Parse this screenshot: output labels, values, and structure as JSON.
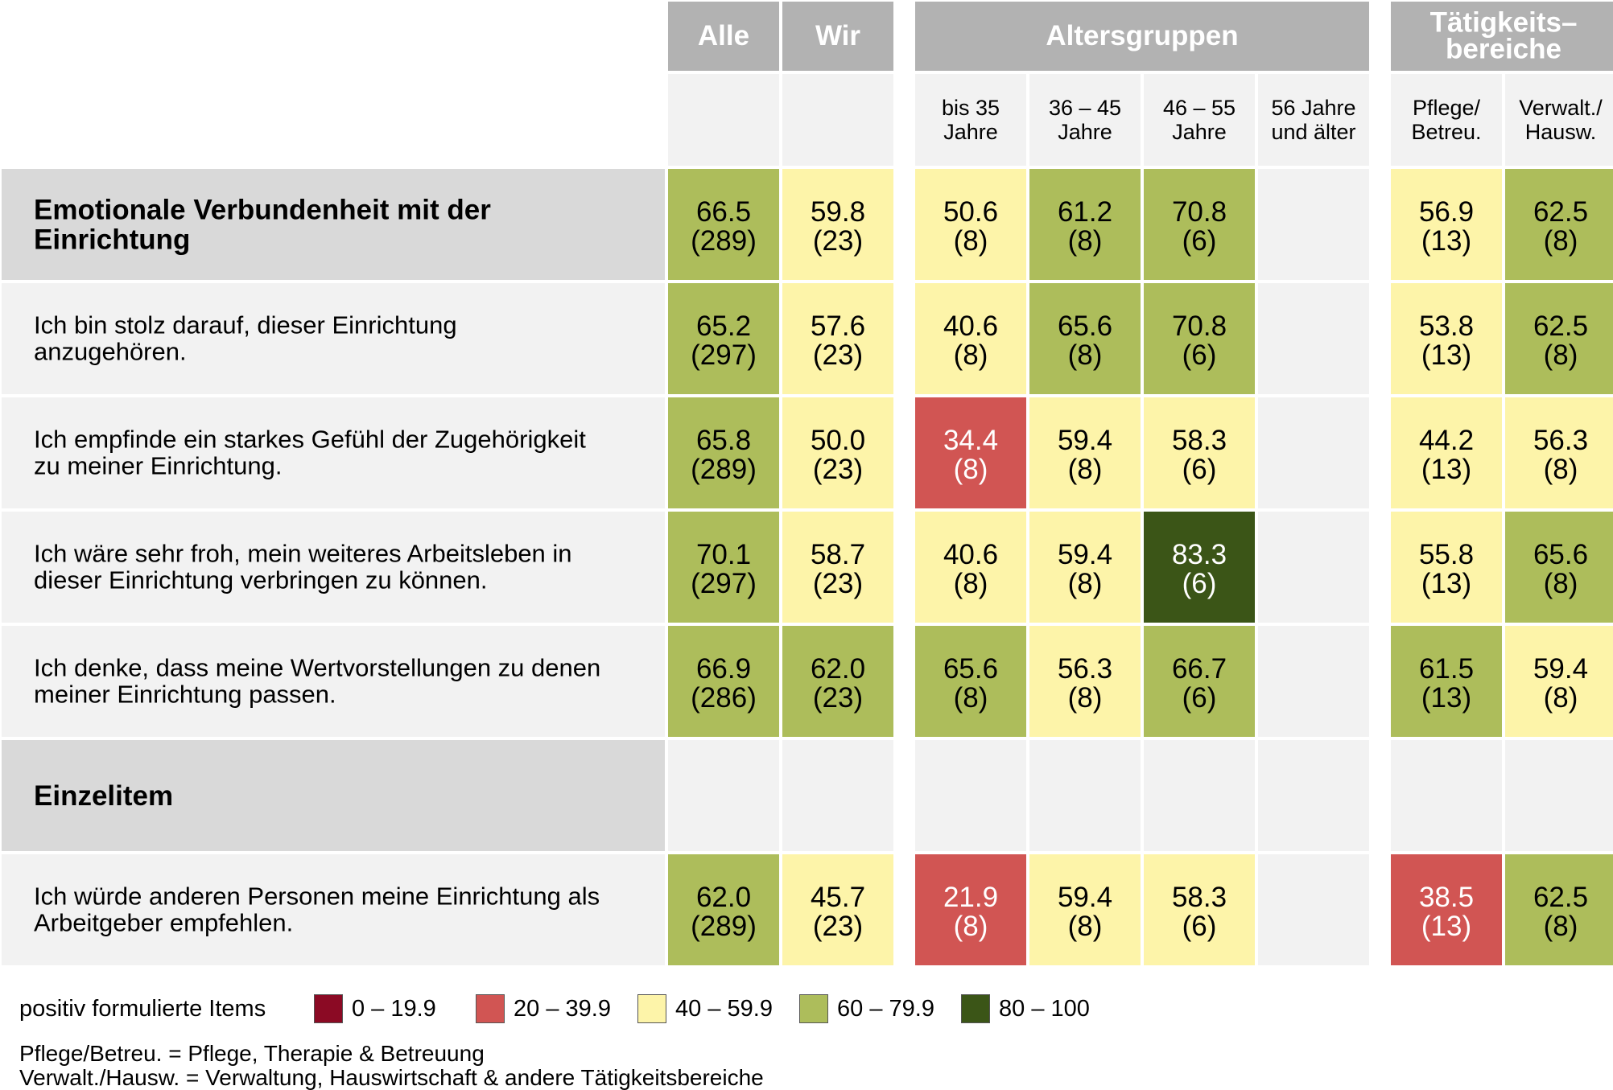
{
  "chart_data": {
    "type": "table",
    "header_groups": [
      {
        "id": "alle",
        "label": "Alle"
      },
      {
        "id": "wir",
        "label": "Wir"
      },
      {
        "id": "alter",
        "label": "Altersgruppen"
      },
      {
        "id": "taet",
        "label": "Tätigkeits–\nbereiche"
      }
    ],
    "columns": [
      {
        "group": "alle",
        "label": ""
      },
      {
        "group": "wir",
        "label": ""
      },
      {
        "group": "alter",
        "label": "bis 35\nJahre"
      },
      {
        "group": "alter",
        "label": "36 – 45\nJahre"
      },
      {
        "group": "alter",
        "label": "46 – 55\nJahre"
      },
      {
        "group": "alter",
        "label": "56 Jahre\nund älter"
      },
      {
        "group": "taet",
        "label": "Pflege/\nBetreu."
      },
      {
        "group": "taet",
        "label": "Verwalt./\nHausw."
      }
    ],
    "rows": [
      {
        "label": "Emotionale Verbundenheit mit der\nEinrichtung",
        "section": true,
        "values": [
          66.5,
          59.8,
          50.6,
          61.2,
          70.8,
          null,
          56.9,
          62.5
        ],
        "n": [
          289,
          23,
          8,
          8,
          6,
          null,
          13,
          8
        ]
      },
      {
        "label": "Ich bin stolz darauf, dieser Einrichtung\nanzugehören.",
        "section": false,
        "values": [
          65.2,
          57.6,
          40.6,
          65.6,
          70.8,
          null,
          53.8,
          62.5
        ],
        "n": [
          297,
          23,
          8,
          8,
          6,
          null,
          13,
          8
        ]
      },
      {
        "label": "Ich empfinde ein starkes Gefühl der Zugehörigkeit\nzu meiner Einrichtung.",
        "section": false,
        "values": [
          65.8,
          50.0,
          34.4,
          59.4,
          58.3,
          null,
          44.2,
          56.3
        ],
        "n": [
          289,
          23,
          8,
          8,
          6,
          null,
          13,
          8
        ]
      },
      {
        "label": "Ich wäre sehr froh, mein weiteres Arbeitsleben in\ndieser Einrichtung verbringen zu können.",
        "section": false,
        "values": [
          70.1,
          58.7,
          40.6,
          59.4,
          83.3,
          null,
          55.8,
          65.6
        ],
        "n": [
          297,
          23,
          8,
          8,
          6,
          null,
          13,
          8
        ]
      },
      {
        "label": "Ich denke, dass meine Wertvorstellungen zu denen\nmeiner Einrichtung passen.",
        "section": false,
        "values": [
          66.9,
          62.0,
          65.6,
          56.3,
          66.7,
          null,
          61.5,
          59.4
        ],
        "n": [
          286,
          23,
          8,
          8,
          6,
          null,
          13,
          8
        ]
      },
      {
        "label": "Einzelitem",
        "section": true,
        "values": [
          null,
          null,
          null,
          null,
          null,
          null,
          null,
          null
        ],
        "n": [
          null,
          null,
          null,
          null,
          null,
          null,
          null,
          null
        ]
      },
      {
        "label": "Ich würde anderen Personen meine Einrichtung als\nArbeitgeber empfehlen.",
        "section": false,
        "values": [
          62.0,
          45.7,
          21.9,
          59.4,
          58.3,
          null,
          38.5,
          62.5
        ],
        "n": [
          289,
          23,
          8,
          8,
          6,
          null,
          13,
          8
        ]
      }
    ],
    "legend": {
      "title": "positiv formulierte Items",
      "bins": [
        {
          "label": "0 – 19.9",
          "min": 0,
          "max": 19.9,
          "color": "#8b0a24"
        },
        {
          "label": "20 – 39.9",
          "min": 20,
          "max": 39.9,
          "color": "#d15553"
        },
        {
          "label": "40 – 59.9",
          "min": 40,
          "max": 59.9,
          "color": "#fdf4a9"
        },
        {
          "label": "60 – 79.9",
          "min": 60,
          "max": 79.9,
          "color": "#adbd5b"
        },
        {
          "label": "80 – 100",
          "min": 80,
          "max": 100,
          "color": "#3b5517"
        }
      ]
    },
    "footnotes": [
      "Pflege/Betreu. = Pflege, Therapie & Betreuung",
      "Verwalt./Hausw. = Verwaltung, Hauswirtschaft & andere Tätigkeitsbereiche"
    ]
  },
  "colors": {
    "header_grey": "#b2b2b2",
    "section_label_bg": "#d9d9d9",
    "row_label_bg": "#f2f2f2",
    "empty_cell_bg": "#f2f2f2"
  }
}
